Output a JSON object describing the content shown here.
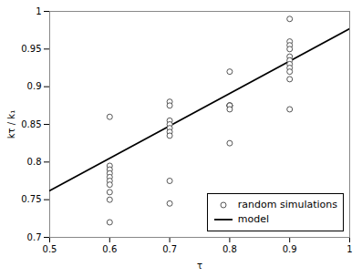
{
  "chart_data": {
    "type": "scatter",
    "xlabel": "τ",
    "ylabel": "kτ / k₁",
    "xlim": [
      0.5,
      1.0
    ],
    "ylim": [
      0.7,
      1.0
    ],
    "xticks": [
      0.5,
      0.6,
      0.7,
      0.8,
      0.9,
      1
    ],
    "yticks": [
      0.7,
      0.75,
      0.8,
      0.85,
      0.9,
      0.95,
      1
    ],
    "grid": false,
    "legend": "lower right",
    "series": [
      {
        "name": "random simulations",
        "type": "scatter",
        "marker": "circle",
        "color": "#444444",
        "x": [
          0.6,
          0.6,
          0.6,
          0.6,
          0.6,
          0.6,
          0.6,
          0.6,
          0.6,
          0.6,
          0.7,
          0.7,
          0.7,
          0.7,
          0.7,
          0.7,
          0.7,
          0.7,
          0.7,
          0.8,
          0.8,
          0.8,
          0.8,
          0.8,
          0.8,
          0.8,
          0.9,
          0.9,
          0.9,
          0.9,
          0.9,
          0.9,
          0.9,
          0.9,
          0.9,
          0.9,
          0.9
        ],
        "values": [
          0.86,
          0.795,
          0.79,
          0.785,
          0.78,
          0.775,
          0.77,
          0.76,
          0.75,
          0.72,
          0.88,
          0.875,
          0.855,
          0.85,
          0.845,
          0.84,
          0.835,
          0.775,
          0.745,
          0.92,
          0.875,
          0.875,
          0.875,
          0.875,
          0.87,
          0.825,
          0.99,
          0.96,
          0.955,
          0.95,
          0.94,
          0.935,
          0.93,
          0.925,
          0.92,
          0.91,
          0.87
        ]
      },
      {
        "name": "model",
        "type": "line",
        "line_style": "solid",
        "color": "black",
        "x": [
          0.5,
          1.0
        ],
        "values": [
          0.762,
          0.977
        ]
      }
    ]
  }
}
